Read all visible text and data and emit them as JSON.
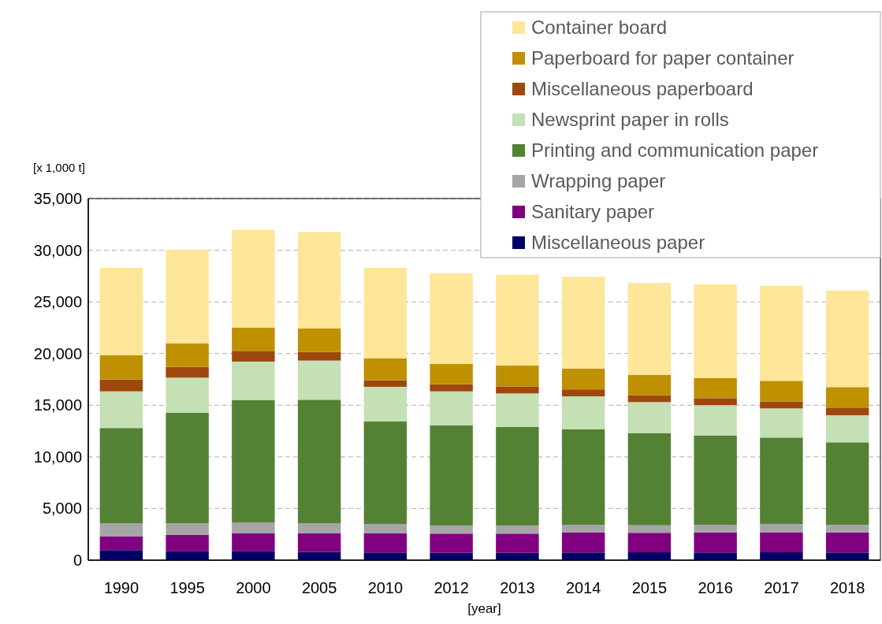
{
  "chart_data": {
    "type": "bar",
    "stacked": true,
    "xlabel": "[year]",
    "ylabel": "[x 1,000 t]",
    "categories": [
      "1990",
      "1995",
      "2000",
      "2005",
      "2010",
      "2012",
      "2013",
      "2014",
      "2015",
      "2016",
      "2017",
      "2018"
    ],
    "ylim": [
      0,
      35000
    ],
    "yticks": [
      {
        "value": 0,
        "label": "0"
      },
      {
        "value": 5000,
        "label": "5,000"
      },
      {
        "value": 10000,
        "label": "10,000"
      },
      {
        "value": 15000,
        "label": "15,000"
      },
      {
        "value": 20000,
        "label": "20,000"
      },
      {
        "value": 25000,
        "label": "25,000"
      },
      {
        "value": 30000,
        "label": "30,000"
      },
      {
        "value": 35000,
        "label": "35,000"
      }
    ],
    "grid": "y",
    "legend": "top right",
    "series": [
      {
        "name": "Miscellaneous paper",
        "color": "#000066",
        "values": [
          970,
          890,
          890,
          790,
          740,
          710,
          710,
          740,
          760,
          740,
          760,
          740
        ]
      },
      {
        "name": "Sanitary paper",
        "color": "#800080",
        "values": [
          1340,
          1570,
          1730,
          1830,
          1880,
          1860,
          1860,
          1930,
          1890,
          1950,
          1940,
          1950
        ]
      },
      {
        "name": "Wrapping paper",
        "color": "#a5a5a5",
        "values": [
          1250,
          1120,
          1040,
          960,
          890,
          790,
          790,
          760,
          730,
          740,
          810,
          740
        ]
      },
      {
        "name": "Printing and communication paper",
        "color": "#548235",
        "values": [
          9230,
          10680,
          11840,
          11950,
          9910,
          9680,
          9530,
          9250,
          8920,
          8640,
          8360,
          7980
        ]
      },
      {
        "name": "Newsprint paper in rolls",
        "color": "#c5e0b4",
        "values": [
          3550,
          3410,
          3720,
          3790,
          3360,
          3300,
          3250,
          3180,
          3000,
          2930,
          2820,
          2620
        ]
      },
      {
        "name": "Miscellaneous paperboard",
        "color": "#9e480e",
        "values": [
          1150,
          1030,
          1040,
          830,
          630,
          690,
          680,
          670,
          660,
          680,
          660,
          690
        ]
      },
      {
        "name": "Paperboard for paper container",
        "color": "#bf9000",
        "values": [
          2340,
          2290,
          2260,
          2270,
          2110,
          1980,
          2010,
          2020,
          1980,
          1960,
          2010,
          2030
        ]
      },
      {
        "name": "Container board",
        "color": "#ffe699",
        "values": [
          8460,
          9030,
          9430,
          9330,
          8770,
          8750,
          8800,
          8880,
          8900,
          9050,
          9200,
          9350
        ]
      }
    ]
  }
}
